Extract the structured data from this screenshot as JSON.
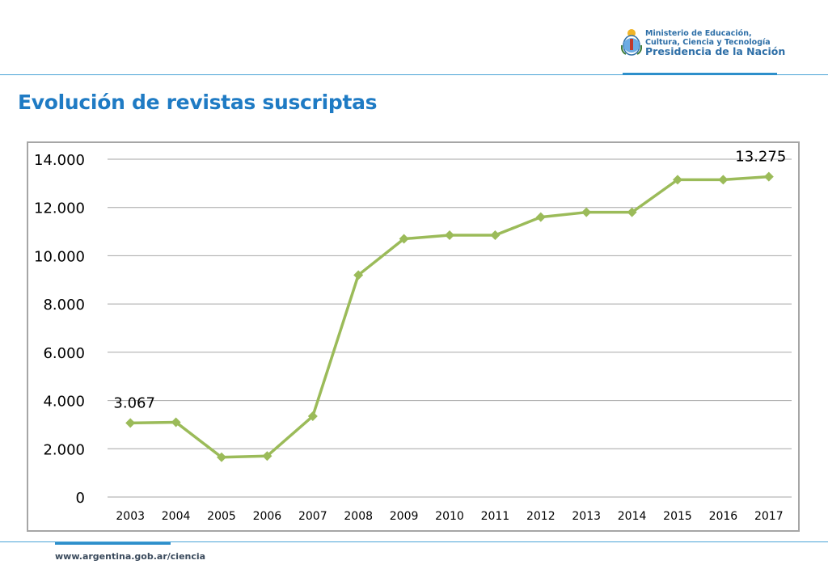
{
  "header": {
    "logo": {
      "line1": "Ministerio de Educación,",
      "line2": "Cultura, Ciencia y Tecnología",
      "line3": "Presidencia de la Nación"
    }
  },
  "page_title": "Evolución de revistas suscriptas",
  "footer": {
    "url": "www.argentina.gob.ar/ciencia"
  },
  "colors": {
    "series": "#9bbb59",
    "title": "#1f7bc4",
    "accent": "#2d8fcb"
  },
  "chart_data": {
    "type": "line",
    "title": "",
    "xlabel": "",
    "ylabel": "",
    "categories": [
      "2003",
      "2004",
      "2005",
      "2006",
      "2007",
      "2008",
      "2009",
      "2010",
      "2011",
      "2012",
      "2013",
      "2014",
      "2015",
      "2016",
      "2017"
    ],
    "series": [
      {
        "values": [
          3067,
          3100,
          1650,
          1700,
          3350,
          9200,
          10700,
          10850,
          10850,
          11600,
          11800,
          11800,
          13150,
          13150,
          13275
        ]
      }
    ],
    "y_ticks": [
      0,
      2000,
      4000,
      6000,
      8000,
      10000,
      12000,
      14000
    ],
    "y_tick_labels": [
      "0",
      "2.000",
      "4.000",
      "6.000",
      "8.000",
      "10.000",
      "12.000",
      "14.000"
    ],
    "ylim": [
      0,
      14000
    ],
    "grid": true,
    "marker": "diamond",
    "legend": "none",
    "annotations": [
      {
        "index": 0,
        "text": "3.067"
      },
      {
        "index": 14,
        "text": "13.275"
      }
    ]
  }
}
